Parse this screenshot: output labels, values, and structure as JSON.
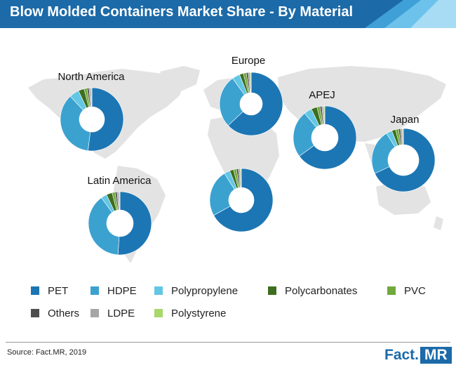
{
  "title": "Blow Molded Containers Market Share - By Material",
  "colors": {
    "header_bg": "#1c6aa8",
    "map_fill": "#e3e3e3",
    "PET": "#1c76b4",
    "HDPE": "#3ba2d0",
    "Polypropylene": "#63c6e4",
    "Polycarbonates": "#3d6e1f",
    "PVC": "#72a83c",
    "Others": "#4d4d4d",
    "LDPE": "#a6a6a6",
    "Polystyrene": "#a9d76a"
  },
  "chart_data": {
    "type": "pie",
    "variant": "donut",
    "categories": [
      "PET",
      "HDPE",
      "Polypropylene",
      "Polycarbonates",
      "PVC",
      "Others",
      "LDPE",
      "Polystyrene"
    ],
    "series": [
      {
        "name": "North America",
        "values": [
          52,
          36,
          5,
          3,
          1.5,
          1,
          1,
          0.5
        ]
      },
      {
        "name": "Europe",
        "values": [
          63,
          27,
          4,
          2,
          1.5,
          1,
          1,
          0.5
        ]
      },
      {
        "name": "APEJ",
        "values": [
          65,
          24,
          4,
          3,
          1.5,
          1,
          1,
          0.5
        ]
      },
      {
        "name": "Japan",
        "values": [
          68,
          23,
          3,
          2,
          1.5,
          1,
          1,
          0.5
        ]
      },
      {
        "name": "Latin America",
        "values": [
          51,
          39,
          3,
          3,
          1.5,
          1,
          1,
          0.5
        ]
      },
      {
        "name": "",
        "values": [
          67,
          24,
          3,
          2,
          1.5,
          1,
          1,
          0.5
        ]
      }
    ],
    "legend_position": "bottom"
  },
  "legend": {
    "items": [
      {
        "label": "PET",
        "key": "PET"
      },
      {
        "label": "HDPE",
        "key": "HDPE"
      },
      {
        "label": "Polypropylene",
        "key": "Polypropylene"
      },
      {
        "label": "Polycarbonates",
        "key": "Polycarbonates"
      },
      {
        "label": "PVC",
        "key": "PVC"
      },
      {
        "label": "Others",
        "key": "Others"
      },
      {
        "label": "LDPE",
        "key": "LDPE"
      },
      {
        "label": "Polystyrene",
        "key": "Polystyrene"
      }
    ]
  },
  "source": "Source: Fact.MR, 2019",
  "logo": {
    "part1": "Fact.",
    "part2": "MR"
  }
}
